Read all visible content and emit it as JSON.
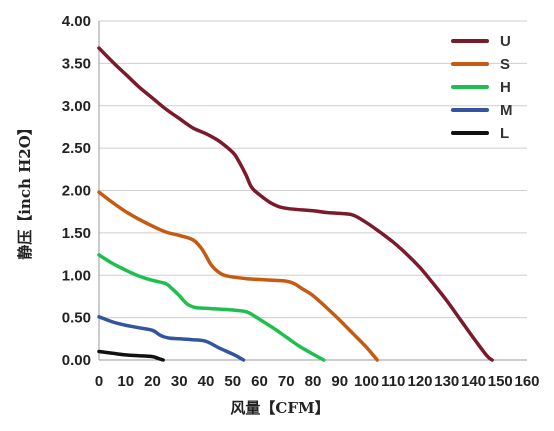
{
  "chart_data": {
    "type": "line",
    "xlabel": "风量【CFM】",
    "ylabel": "静压【inch H2O】",
    "xlim": [
      0,
      160
    ],
    "ylim": [
      0,
      4
    ],
    "x_ticks": [
      "0",
      "10",
      "20",
      "30",
      "40",
      "50",
      "60",
      "70",
      "80",
      "90",
      "100",
      "110",
      "120",
      "130",
      "140",
      "150",
      "160"
    ],
    "y_ticks": [
      "0.00",
      "0.50",
      "1.00",
      "1.50",
      "2.00",
      "2.50",
      "3.00",
      "3.50",
      "4.00"
    ],
    "grid": "horizontal",
    "legend_position": "top-right",
    "series": [
      {
        "name": "U",
        "color": "#7a1a2a",
        "points": [
          [
            0,
            3.68
          ],
          [
            5,
            3.52
          ],
          [
            10,
            3.37
          ],
          [
            15,
            3.22
          ],
          [
            20,
            3.09
          ],
          [
            25,
            2.96
          ],
          [
            30,
            2.85
          ],
          [
            35,
            2.74
          ],
          [
            40,
            2.67
          ],
          [
            45,
            2.58
          ],
          [
            50,
            2.45
          ],
          [
            52,
            2.36
          ],
          [
            55,
            2.18
          ],
          [
            57,
            2.04
          ],
          [
            60,
            1.95
          ],
          [
            65,
            1.84
          ],
          [
            70,
            1.79
          ],
          [
            80,
            1.76
          ],
          [
            85,
            1.74
          ],
          [
            90,
            1.73
          ],
          [
            95,
            1.71
          ],
          [
            100,
            1.62
          ],
          [
            105,
            1.51
          ],
          [
            110,
            1.39
          ],
          [
            115,
            1.25
          ],
          [
            120,
            1.09
          ],
          [
            125,
            0.9
          ],
          [
            130,
            0.7
          ],
          [
            135,
            0.48
          ],
          [
            140,
            0.26
          ],
          [
            145,
            0.05
          ],
          [
            147,
            0.0
          ]
        ]
      },
      {
        "name": "S",
        "color": "#c55a11",
        "points": [
          [
            0,
            1.98
          ],
          [
            5,
            1.86
          ],
          [
            10,
            1.75
          ],
          [
            15,
            1.66
          ],
          [
            20,
            1.58
          ],
          [
            25,
            1.51
          ],
          [
            30,
            1.47
          ],
          [
            35,
            1.42
          ],
          [
            38,
            1.33
          ],
          [
            40,
            1.23
          ],
          [
            42,
            1.12
          ],
          [
            45,
            1.03
          ],
          [
            48,
            0.99
          ],
          [
            55,
            0.96
          ],
          [
            60,
            0.95
          ],
          [
            65,
            0.94
          ],
          [
            70,
            0.93
          ],
          [
            73,
            0.9
          ],
          [
            76,
            0.84
          ],
          [
            80,
            0.76
          ],
          [
            85,
            0.62
          ],
          [
            90,
            0.47
          ],
          [
            95,
            0.31
          ],
          [
            100,
            0.15
          ],
          [
            104,
            0.0
          ]
        ]
      },
      {
        "name": "H",
        "color": "#1fbf4f",
        "points": [
          [
            0,
            1.24
          ],
          [
            5,
            1.14
          ],
          [
            10,
            1.06
          ],
          [
            15,
            0.99
          ],
          [
            20,
            0.94
          ],
          [
            25,
            0.9
          ],
          [
            27,
            0.85
          ],
          [
            30,
            0.76
          ],
          [
            33,
            0.66
          ],
          [
            36,
            0.62
          ],
          [
            40,
            0.61
          ],
          [
            45,
            0.6
          ],
          [
            50,
            0.59
          ],
          [
            55,
            0.57
          ],
          [
            58,
            0.52
          ],
          [
            62,
            0.44
          ],
          [
            66,
            0.36
          ],
          [
            70,
            0.27
          ],
          [
            75,
            0.16
          ],
          [
            80,
            0.07
          ],
          [
            84,
            0.0
          ]
        ]
      },
      {
        "name": "M",
        "color": "#3355a0",
        "points": [
          [
            0,
            0.51
          ],
          [
            5,
            0.45
          ],
          [
            10,
            0.41
          ],
          [
            15,
            0.38
          ],
          [
            20,
            0.35
          ],
          [
            23,
            0.29
          ],
          [
            26,
            0.26
          ],
          [
            30,
            0.25
          ],
          [
            35,
            0.24
          ],
          [
            40,
            0.22
          ],
          [
            45,
            0.14
          ],
          [
            50,
            0.07
          ],
          [
            54,
            0.0
          ]
        ]
      },
      {
        "name": "L",
        "color": "#111111",
        "points": [
          [
            0,
            0.1
          ],
          [
            5,
            0.08
          ],
          [
            10,
            0.06
          ],
          [
            15,
            0.05
          ],
          [
            20,
            0.04
          ],
          [
            22,
            0.02
          ],
          [
            24,
            0.0
          ]
        ]
      }
    ]
  }
}
